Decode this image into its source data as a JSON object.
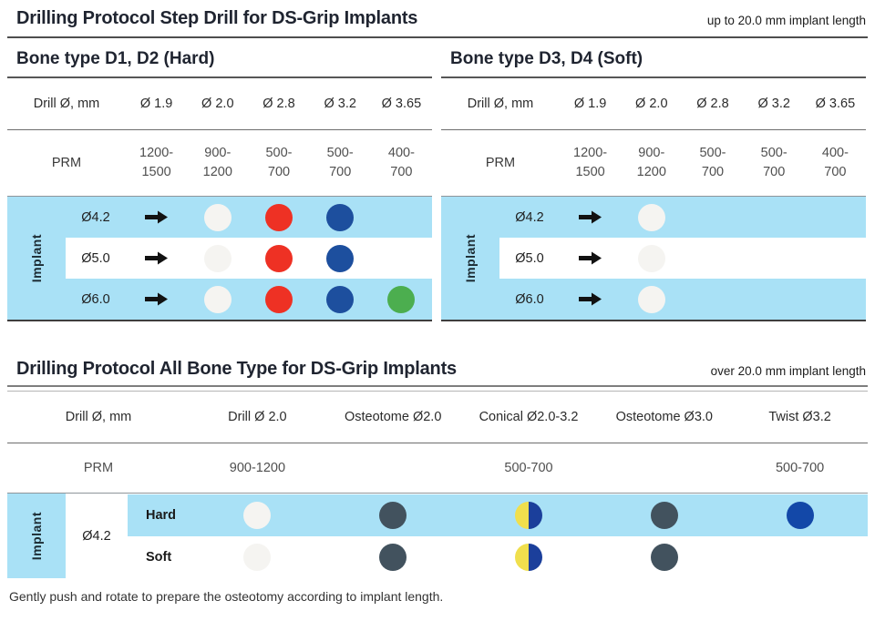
{
  "colors": {
    "band_blue": "#a9e1f6",
    "dot_white": "#f5f4f1",
    "dot_red": "#ee3124",
    "dot_blue": "#1d4f9e",
    "dot_green": "#4cae4f",
    "dot_gray": "#42525e",
    "dot_navy": "#1348a8",
    "split_yellow": "#f0df4d",
    "split_blue": "#1b3f9b"
  },
  "step_section": {
    "title": "Drilling Protocol Step Drill for DS-Grip Implants",
    "note": "up to 20.0 mm implant length",
    "tables": [
      {
        "heading": "Bone type D1, D2 (Hard)",
        "columns": [
          "Drill Ø, mm",
          "Ø 1.9",
          "Ø 2.0",
          "Ø 2.8",
          "Ø 3.2",
          "Ø 3.65"
        ],
        "prm_label": "PRM",
        "prm_values": [
          "1200-1500",
          "900-1200",
          "500-700",
          "500-700",
          "400-700"
        ],
        "side_label": "Implant",
        "rows": [
          {
            "label": "Ø4.2",
            "cells": [
              "arrow",
              "dot_white",
              "dot_red",
              "dot_blue",
              "none"
            ]
          },
          {
            "label": "Ø5.0",
            "cells": [
              "arrow",
              "dot_white",
              "dot_red",
              "dot_blue",
              "none"
            ]
          },
          {
            "label": "Ø6.0",
            "cells": [
              "arrow",
              "dot_white",
              "dot_red",
              "dot_blue",
              "dot_green"
            ]
          }
        ]
      },
      {
        "heading": "Bone type D3, D4 (Soft)",
        "columns": [
          "Drill Ø, mm",
          "Ø 1.9",
          "Ø 2.0",
          "Ø 2.8",
          "Ø 3.2",
          "Ø 3.65"
        ],
        "prm_label": "PRM",
        "prm_values": [
          "1200-1500",
          "900-1200",
          "500-700",
          "500-700",
          "400-700"
        ],
        "side_label": "Implant",
        "rows": [
          {
            "label": "Ø4.2",
            "cells": [
              "arrow",
              "dot_white",
              "none",
              "none",
              "none"
            ]
          },
          {
            "label": "Ø5.0",
            "cells": [
              "arrow",
              "dot_white",
              "none",
              "none",
              "none"
            ]
          },
          {
            "label": "Ø6.0",
            "cells": [
              "arrow",
              "dot_white",
              "none",
              "none",
              "none"
            ]
          }
        ]
      }
    ]
  },
  "allbone_section": {
    "title": "Drilling Protocol All Bone Type for DS-Grip Implants",
    "note": "over 20.0 mm implant length",
    "columns": [
      "Drill Ø, mm",
      "Drill Ø 2.0",
      "Osteotome Ø2.0",
      "Conical Ø2.0-3.2",
      "Osteotome Ø3.0",
      "Twist Ø3.2"
    ],
    "prm_label": "PRM",
    "prm_values": [
      "900-1200",
      "",
      "500-700",
      "",
      "500-700"
    ],
    "side_label": "Implant",
    "group_label": "Ø4.2",
    "rows": [
      {
        "label": "Hard",
        "cells": [
          "dot_white",
          "dot_gray",
          "dot_split",
          "dot_gray",
          "dot_navy"
        ]
      },
      {
        "label": "Soft",
        "cells": [
          "dot_white",
          "dot_gray",
          "dot_split",
          "dot_gray",
          "none"
        ]
      }
    ]
  },
  "footer": "Gently push and rotate to prepare the osteotomy according to implant length."
}
